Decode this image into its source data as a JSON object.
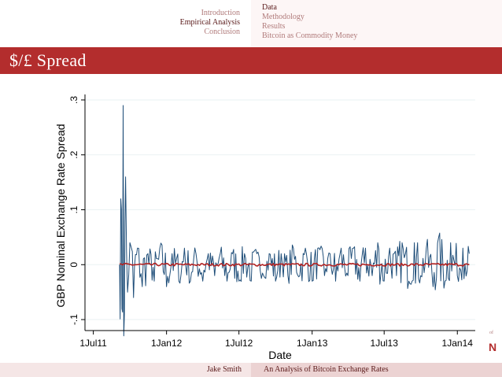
{
  "nav": {
    "sections": [
      {
        "label": "Introduction",
        "active": false
      },
      {
        "label": "Empirical Analysis",
        "active": true
      },
      {
        "label": "Conclusion",
        "active": false
      }
    ],
    "subsections": [
      {
        "label": "Data",
        "active": true
      },
      {
        "label": "Methodology",
        "active": false
      },
      {
        "label": "Results",
        "active": false
      },
      {
        "label": "Bitcoin as Commodity Money",
        "active": false
      }
    ]
  },
  "slide": {
    "title": "$/£ Spread"
  },
  "logo": {
    "letter": "N",
    "tiny": "of"
  },
  "footer": {
    "author": "Jake Smith",
    "title": "An Analysis of Bitcoin Exchange Rates"
  },
  "colors": {
    "accent": "#b32d2d",
    "series_spread": "#1f4e79",
    "series_mean": "#b22222",
    "plot_background": "#ffffff",
    "grid": "#eaf2f3"
  },
  "chart_data": {
    "type": "line",
    "title": "",
    "xlabel": "Date",
    "ylabel": "GBP Nominal Exchange Rate Spread",
    "x_ticks": [
      "1Jul11",
      "1Jan12",
      "1Jul12",
      "1Jan13",
      "1Jul13",
      "1Jan14"
    ],
    "y_ticks": [
      "-.1",
      "0",
      ".1",
      ".2",
      ".3"
    ],
    "y_tick_values": [
      -0.1,
      0,
      0.1,
      0.2,
      0.3
    ],
    "xlim": [
      "2011-06-10",
      "2014-02-15"
    ],
    "ylim": [
      -0.12,
      0.31
    ],
    "grid": true,
    "legend": "none",
    "series": [
      {
        "key": "spread",
        "style": "volatile",
        "x": [
          "2011-09-05",
          "2011-09-08",
          "2011-09-11",
          "2011-09-14",
          "2011-09-17",
          "2011-09-20",
          "2011-09-25",
          "2011-10-01",
          "2011-10-10",
          "2011-10-20",
          "2011-11-01",
          "2011-11-15",
          "2011-12-01",
          "2011-12-15",
          "2012-01-01",
          "2012-01-15",
          "2012-02-01",
          "2012-02-15",
          "2012-03-01",
          "2012-03-15",
          "2012-04-01",
          "2012-04-15",
          "2012-05-01",
          "2012-05-15",
          "2012-06-01",
          "2012-06-15",
          "2012-07-01",
          "2012-07-15",
          "2012-08-01",
          "2012-08-15",
          "2012-09-01",
          "2012-09-15",
          "2012-10-01",
          "2012-10-15",
          "2012-11-01",
          "2012-11-15",
          "2012-12-01",
          "2012-12-15",
          "2013-01-01",
          "2013-01-15",
          "2013-02-01",
          "2013-02-15",
          "2013-03-01",
          "2013-03-15",
          "2013-04-01",
          "2013-04-15",
          "2013-05-01",
          "2013-05-15",
          "2013-06-01",
          "2013-06-15",
          "2013-07-01",
          "2013-07-15",
          "2013-08-01",
          "2013-08-15",
          "2013-09-01",
          "2013-09-15",
          "2013-10-01",
          "2013-10-15",
          "2013-11-01",
          "2013-11-15",
          "2013-12-01",
          "2013-12-15",
          "2014-01-01",
          "2014-01-15",
          "2014-01-31"
        ],
        "y": [
          0.0,
          0.12,
          -0.08,
          0.29,
          -0.09,
          0.16,
          -0.05,
          0.04,
          -0.06,
          0.03,
          -0.04,
          0.02,
          -0.03,
          0.03,
          -0.04,
          0.02,
          -0.03,
          0.03,
          -0.03,
          0.02,
          -0.03,
          0.02,
          -0.02,
          0.02,
          -0.03,
          0.02,
          -0.03,
          0.02,
          -0.03,
          0.02,
          -0.02,
          0.02,
          -0.03,
          0.02,
          -0.02,
          0.03,
          -0.02,
          0.03,
          -0.03,
          0.03,
          -0.02,
          0.02,
          -0.03,
          0.03,
          -0.02,
          0.03,
          -0.03,
          0.03,
          -0.02,
          0.04,
          -0.03,
          0.03,
          -0.02,
          0.04,
          -0.03,
          0.04,
          -0.02,
          0.03,
          -0.04,
          0.05,
          -0.03,
          0.04,
          -0.02,
          0.03,
          0.02
        ]
      },
      {
        "key": "mean",
        "style": "smooth",
        "x": [
          "2011-09-05",
          "2012-01-01",
          "2012-07-01",
          "2013-01-01",
          "2013-07-01",
          "2014-01-31"
        ],
        "y": [
          0.0,
          0.0,
          0.0,
          0.0,
          0.0,
          0.0
        ]
      }
    ]
  }
}
